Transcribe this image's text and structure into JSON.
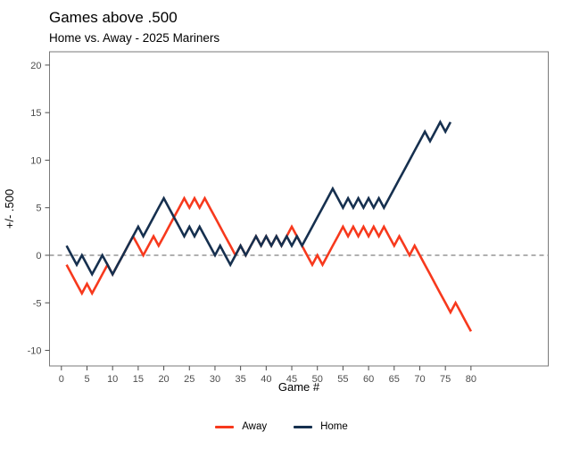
{
  "page": {
    "background": "#ffffff"
  },
  "chart_data": {
    "type": "line",
    "title": "Games above .500",
    "subtitle": "Home vs. Away - 2025 Mariners",
    "xlabel": "Game #",
    "ylabel": "+/- .500",
    "x_ticks": [
      0,
      5,
      10,
      15,
      20,
      25,
      30,
      35,
      40,
      45,
      50,
      55,
      60,
      65,
      70,
      75,
      80
    ],
    "y_ticks": [
      -10,
      -5,
      0,
      5,
      10,
      15,
      20
    ],
    "xlim": [
      -2.32,
      95.1
    ],
    "ylim": [
      -11.64,
      21.4
    ],
    "grid": "off",
    "reference_line_y": 0,
    "reference_line_color": "#808080",
    "panel_border_color": "#7a7a7a",
    "tick_color": "#4d4d4d",
    "start_game": 1,
    "legend_position": "bottom-center",
    "legend": [
      {
        "name": "Away",
        "color": "#f7391d"
      },
      {
        "name": "Home",
        "color": "#16304f"
      }
    ],
    "series": [
      {
        "name": "Away",
        "color": "#f7391d",
        "values": [
          -1,
          -2,
          -3,
          -4,
          -3,
          -4,
          -3,
          -2,
          -1,
          -2,
          -1,
          0,
          1,
          2,
          1,
          0,
          1,
          2,
          1,
          2,
          3,
          4,
          5,
          6,
          5,
          6,
          5,
          6,
          5,
          4,
          3,
          2,
          1,
          0,
          1,
          0,
          1,
          2,
          1,
          2,
          1,
          2,
          1,
          2,
          3,
          2,
          1,
          0,
          -1,
          0,
          -1,
          0,
          1,
          2,
          3,
          2,
          3,
          2,
          3,
          2,
          3,
          2,
          3,
          2,
          1,
          2,
          1,
          0,
          1,
          0,
          -1,
          -2,
          -3,
          -4,
          -5,
          -6,
          -5,
          -6,
          -7,
          -8
        ]
      },
      {
        "name": "Home",
        "color": "#16304f",
        "values": [
          1,
          0,
          -1,
          0,
          -1,
          -2,
          -1,
          0,
          -1,
          -2,
          -1,
          0,
          1,
          2,
          3,
          2,
          3,
          4,
          5,
          6,
          5,
          4,
          3,
          2,
          3,
          2,
          3,
          2,
          1,
          0,
          1,
          0,
          -1,
          0,
          1,
          0,
          1,
          2,
          1,
          2,
          1,
          2,
          1,
          2,
          1,
          2,
          1,
          2,
          3,
          4,
          5,
          6,
          7,
          6,
          5,
          6,
          5,
          6,
          5,
          6,
          5,
          6,
          5,
          6,
          7,
          8,
          9,
          10,
          11,
          12,
          13,
          12,
          13,
          14,
          13,
          14
        ]
      }
    ]
  }
}
